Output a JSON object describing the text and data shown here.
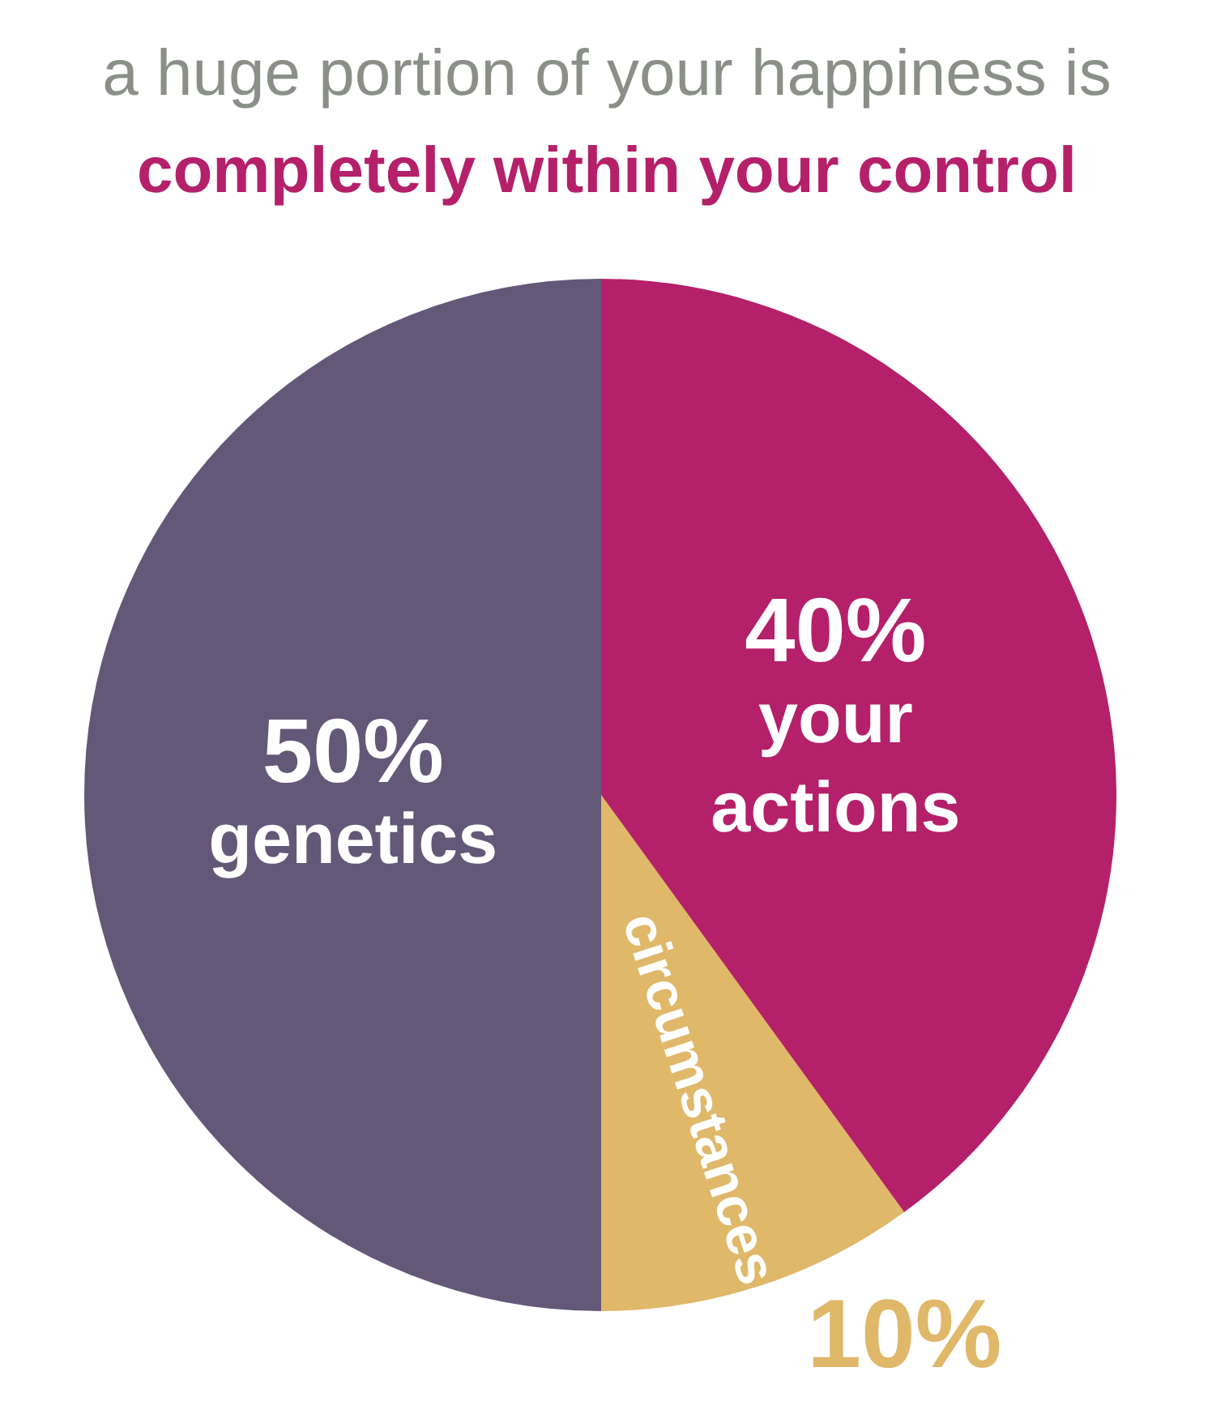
{
  "chart_data": {
    "type": "pie",
    "title": "a huge portion of your happiness is",
    "subtitle": "completely within your control",
    "categories": [
      "your actions",
      "circumstances",
      "genetics"
    ],
    "values": [
      40,
      10,
      50
    ],
    "colors": [
      "#b5206a",
      "#e0b86a",
      "#635878"
    ],
    "value_labels": [
      "40%",
      "10%",
      "50%"
    ]
  }
}
